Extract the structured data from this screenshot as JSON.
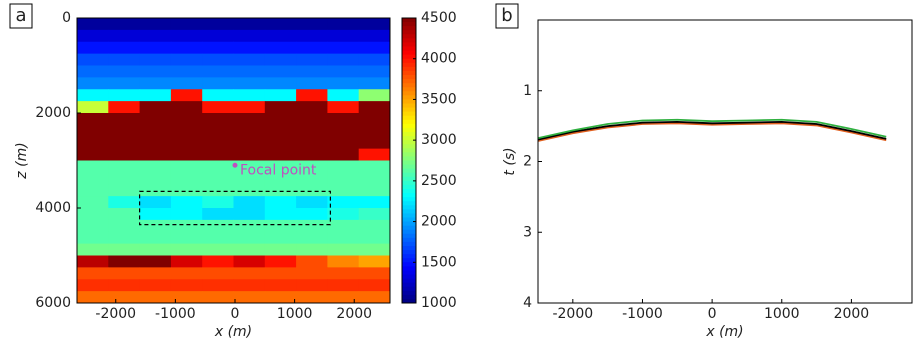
{
  "chart_data": [
    {
      "type": "heatmap",
      "panel_label": "a",
      "xlabel": "x (m)",
      "ylabel": "z (m)",
      "xlim": [
        -2650,
        2600
      ],
      "ylim": [
        0,
        6000
      ],
      "y_inverted": true,
      "xticks": [
        -2000,
        -1000,
        0,
        1000,
        2000
      ],
      "yticks": [
        0,
        2000,
        4000,
        6000
      ],
      "colormap": "jet",
      "clim": [
        1000,
        4500
      ],
      "cticks": [
        1000,
        1500,
        2000,
        2500,
        3000,
        3500,
        4000,
        4500
      ],
      "values": [
        [
          1100,
          1100,
          1100,
          1100,
          1100,
          1100,
          1100,
          1100,
          1100,
          1100
        ],
        [
          1300,
          1300,
          1300,
          1300,
          1300,
          1300,
          1300,
          1300,
          1300,
          1300
        ],
        [
          1500,
          1500,
          1500,
          1500,
          1500,
          1500,
          1500,
          1500,
          1500,
          1500
        ],
        [
          1700,
          1700,
          1700,
          1700,
          1700,
          1700,
          1700,
          1700,
          1700,
          1700
        ],
        [
          1800,
          1800,
          1800,
          1800,
          1800,
          1800,
          1800,
          1800,
          1800,
          1800
        ],
        [
          1900,
          1900,
          1900,
          1900,
          1900,
          1900,
          1900,
          1900,
          1900,
          1900
        ],
        [
          2300,
          2300,
          2300,
          4000,
          2300,
          2300,
          2300,
          4000,
          2300,
          2800
        ],
        [
          3000,
          4000,
          4500,
          4500,
          4000,
          4000,
          4500,
          4500,
          4000,
          4500
        ],
        [
          4500,
          4500,
          4500,
          4500,
          4500,
          4500,
          4500,
          4500,
          4500,
          4500
        ],
        [
          4500,
          4500,
          4500,
          4500,
          4500,
          4500,
          4500,
          4500,
          4500,
          4500
        ],
        [
          4500,
          4500,
          4500,
          4500,
          4500,
          4500,
          4500,
          4500,
          4500,
          4500
        ],
        [
          4500,
          4500,
          4500,
          4500,
          4500,
          4500,
          4500,
          4500,
          4500,
          4000
        ],
        [
          2600,
          2600,
          2600,
          2600,
          2600,
          2600,
          2600,
          2600,
          2600,
          2600
        ],
        [
          2600,
          2600,
          2600,
          2600,
          2600,
          2600,
          2600,
          2600,
          2600,
          2600
        ],
        [
          2600,
          2600,
          2600,
          2600,
          2600,
          2600,
          2600,
          2600,
          2600,
          2600
        ],
        [
          2600,
          2400,
          2200,
          2300,
          2400,
          2200,
          2300,
          2200,
          2300,
          2300
        ],
        [
          2600,
          2600,
          2300,
          2300,
          2200,
          2200,
          2300,
          2300,
          2400,
          2500
        ],
        [
          2600,
          2600,
          2600,
          2600,
          2600,
          2600,
          2600,
          2600,
          2600,
          2600
        ],
        [
          2600,
          2600,
          2600,
          2600,
          2600,
          2600,
          2600,
          2600,
          2600,
          2600
        ],
        [
          2700,
          2700,
          2700,
          2700,
          2700,
          2700,
          2700,
          2700,
          2700,
          2700
        ],
        [
          4300,
          4500,
          4500,
          4200,
          4000,
          4200,
          4000,
          3800,
          3600,
          3500
        ],
        [
          3800,
          3800,
          3800,
          3800,
          3800,
          3800,
          3800,
          3800,
          3800,
          3800
        ],
        [
          3900,
          3900,
          3900,
          3900,
          3900,
          3900,
          3900,
          3900,
          3900,
          3900
        ],
        [
          3700,
          3700,
          3700,
          3700,
          3700,
          3700,
          3700,
          3700,
          3700,
          3700
        ]
      ],
      "box": {
        "x": [
          -1600,
          1600
        ],
        "z": [
          3650,
          4350
        ]
      },
      "focal_point": {
        "x": 0,
        "z": 3100,
        "label": "Focal point",
        "color": "#c050c0"
      }
    },
    {
      "type": "line",
      "panel_label": "b",
      "xlabel": "x (m)",
      "ylabel": "t (s)",
      "xlim": [
        -2500,
        2870
      ],
      "ylim": [
        0,
        4
      ],
      "y_inverted": true,
      "xticks": [
        -2000,
        -1000,
        0,
        1000,
        2000
      ],
      "yticks": [
        1,
        2,
        3,
        4
      ],
      "x": [
        -2500,
        -2000,
        -1500,
        -1000,
        -500,
        0,
        500,
        1000,
        1500,
        2000,
        2500
      ],
      "series": [
        {
          "color": "#e06020",
          "values": [
            1.71,
            1.6,
            1.52,
            1.47,
            1.46,
            1.48,
            1.47,
            1.46,
            1.49,
            1.59,
            1.7
          ]
        },
        {
          "color": "#000000",
          "values": [
            1.69,
            1.58,
            1.5,
            1.45,
            1.44,
            1.46,
            1.45,
            1.44,
            1.47,
            1.57,
            1.68
          ]
        },
        {
          "color": "#30b040",
          "values": [
            1.67,
            1.56,
            1.47,
            1.42,
            1.41,
            1.43,
            1.42,
            1.41,
            1.44,
            1.54,
            1.65
          ]
        }
      ]
    }
  ]
}
